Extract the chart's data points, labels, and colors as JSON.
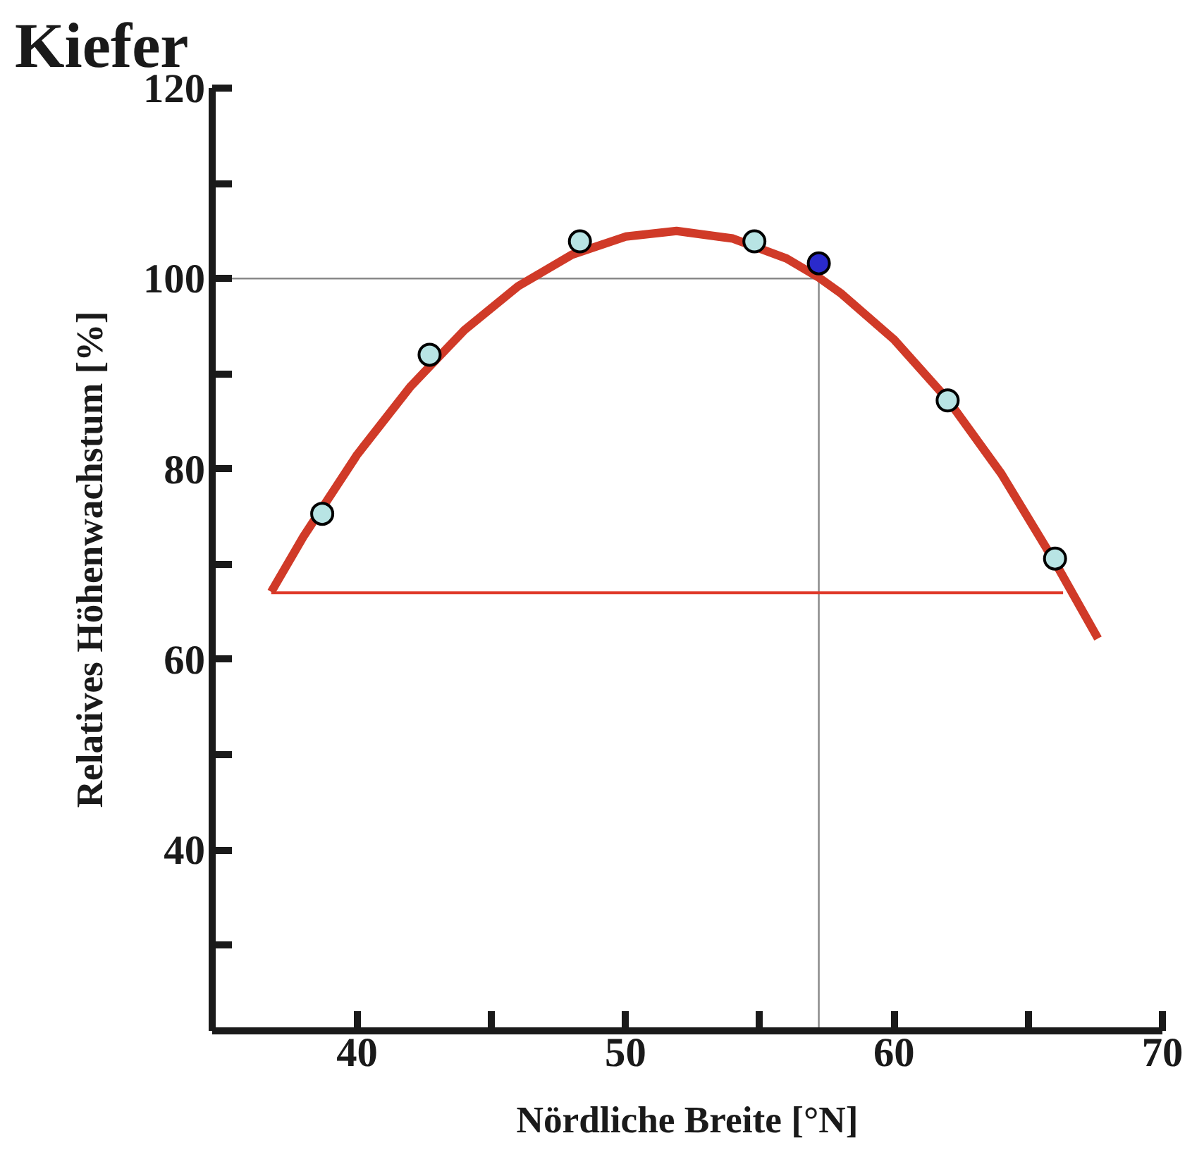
{
  "chart_data": {
    "type": "line",
    "title": "Kiefer",
    "xlabel": "Nördliche Breite [°N]",
    "ylabel": "Relatives Höhenwachstum [%]",
    "xlim": [
      34.6,
      70
    ],
    "ylim": [
      21,
      120
    ],
    "xticks": [
      40,
      {
        "value": 45,
        "label": null
      },
      50,
      {
        "value": 55,
        "label": null
      },
      60,
      {
        "value": 65,
        "label": null
      },
      70
    ],
    "yticks": [
      {
        "value": 30,
        "label": null
      },
      40,
      {
        "value": 50,
        "label": null
      },
      60,
      {
        "value": 70,
        "label": null
      },
      80,
      {
        "value": 90,
        "label": null
      },
      100,
      {
        "value": 110,
        "label": null
      },
      120
    ],
    "grid": false,
    "marker": "none",
    "line_style": "solid",
    "series": [
      {
        "color": "#888888",
        "x": [
          34.6,
          57.2,
          57.2
        ],
        "values": [
          100,
          100,
          21
        ]
      },
      {
        "color": "#e03a2a",
        "x": [
          36.8,
          66.3
        ],
        "values": [
          67,
          67
        ]
      },
      {
        "color": "#d03a28",
        "x": [
          36.8,
          38,
          40,
          42,
          44,
          46,
          48,
          50,
          51.9,
          54,
          56,
          57.2,
          58,
          60,
          62,
          64,
          66,
          67.6
        ],
        "values": [
          67.1,
          72.9,
          81.5,
          88.7,
          94.6,
          99.2,
          102.5,
          104.4,
          105,
          104.2,
          102.1,
          100.1,
          98.5,
          93.6,
          87.3,
          79.5,
          70.2,
          62.2
        ]
      },
      {
        "type": "scatter",
        "marker": "circle",
        "color": "#b8e4e4",
        "x": [
          38.7,
          42.7,
          48.3,
          54.8,
          62.0,
          66.0
        ],
        "values": [
          75.3,
          92.0,
          103.9,
          103.9,
          87.2,
          70.6
        ]
      },
      {
        "type": "scatter",
        "marker": "circle",
        "color": "#2a2acc",
        "x": [
          57.2
        ],
        "values": [
          101.6
        ]
      }
    ]
  }
}
